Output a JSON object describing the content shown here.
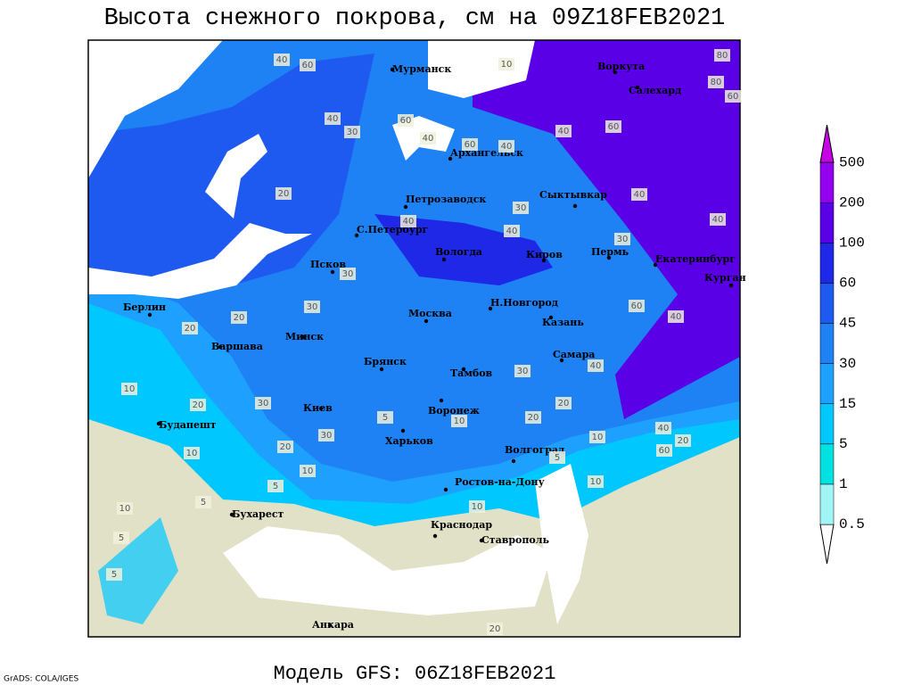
{
  "header": {
    "title": "Высота снежного покрова, см на 09Z18FEB2021"
  },
  "map": {
    "cities": [
      "Мурманск",
      "Воркута",
      "Салехард",
      "Архангельск",
      "Петрозаводск",
      "Сыктывкар",
      "С.Петербург",
      "Вологда",
      "Киров",
      "Пермь",
      "Екатеринбург",
      "Курган",
      "Псков",
      "Берлин",
      "Н.Новгород",
      "Москва",
      "Казань",
      "Минск",
      "Варшава",
      "Самара",
      "Брянск",
      "Тамбов",
      "Киев",
      "Воронеж",
      "Будапешт",
      "Харьков",
      "Волгоград",
      "Ростов-на-Дону",
      "Бухарест",
      "Краснодар",
      "Ставрополь",
      "Анкара"
    ],
    "contour_labels": [
      40,
      60,
      10,
      80,
      80,
      60,
      40,
      60,
      40,
      30,
      60,
      40,
      60,
      40,
      20,
      40,
      40,
      30,
      40,
      40,
      30,
      30,
      20,
      20,
      30,
      60,
      40,
      10,
      20,
      30,
      40,
      30,
      20,
      5,
      10,
      20,
      10,
      30,
      5,
      20,
      10,
      10,
      5,
      5,
      10,
      40,
      20,
      60,
      10,
      5,
      5,
      10,
      20
    ]
  },
  "legend": {
    "levels": [
      0.5,
      1,
      5,
      15,
      30,
      45,
      60,
      100,
      200,
      500
    ],
    "colors": [
      "#ffffff",
      "#a0f5f5",
      "#00e1e1",
      "#00c8ff",
      "#1ea0ff",
      "#1e82f5",
      "#1e5af0",
      "#1e28e6",
      "#5a00e6",
      "#9600f0",
      "#c800e6"
    ]
  },
  "footer": {
    "credit": "GrADS: COLA/IGES",
    "model": "Модель GFS: 06Z18FEB2021"
  }
}
